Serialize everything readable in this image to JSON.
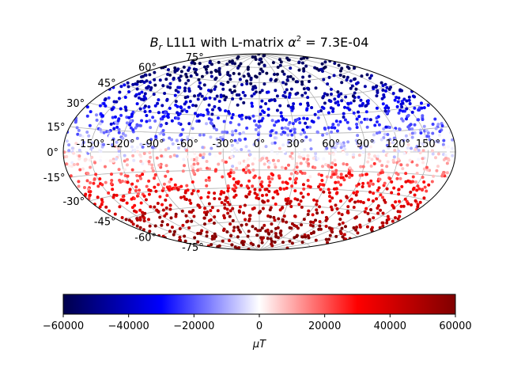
{
  "chart_data": {
    "type": "scatter",
    "projection": "hammer",
    "title": {
      "var_main": "B",
      "var_sub": "r",
      "text": " L1L1 with L-matrix ",
      "alpha": "α",
      "alpha_exp": "2",
      "rest": " = 7.3E-04"
    },
    "lon_ticks": [
      "-150°",
      "-120°",
      "-90°",
      "-60°",
      "-30°",
      "0°",
      "30°",
      "60°",
      "90°",
      "120°",
      "150°"
    ],
    "lon_values": [
      -150,
      -120,
      -90,
      -60,
      -30,
      0,
      30,
      60,
      90,
      120,
      150
    ],
    "lat_ticks": [
      "75°",
      "60°",
      "45°",
      "30°",
      "15°",
      "0°",
      "-15°",
      "-30°",
      "-45°",
      "-60°",
      "-75°"
    ],
    "lat_values": [
      75,
      60,
      45,
      30,
      15,
      0,
      -15,
      -30,
      -45,
      -60,
      -75
    ],
    "grid": true,
    "colorbar": {
      "orientation": "horizontal",
      "placement": "bottom",
      "cmap": "seismic",
      "vmin": -60000,
      "vmax": 60000,
      "ticks": [
        "−60000",
        "−40000",
        "−20000",
        "0",
        "20000",
        "40000",
        "60000"
      ],
      "tick_values": [
        -60000,
        -40000,
        -20000,
        0,
        20000,
        40000,
        60000
      ],
      "label_var": "μT"
    },
    "colormap_stops": [
      "#00004c",
      "#0000ff",
      "#ffffff",
      "#ff0000",
      "#800000"
    ],
    "point_count": 2000,
    "value_trend": "B_r is strongly negative near the north pole, near zero at the equator and strongly positive near the south pole"
  }
}
